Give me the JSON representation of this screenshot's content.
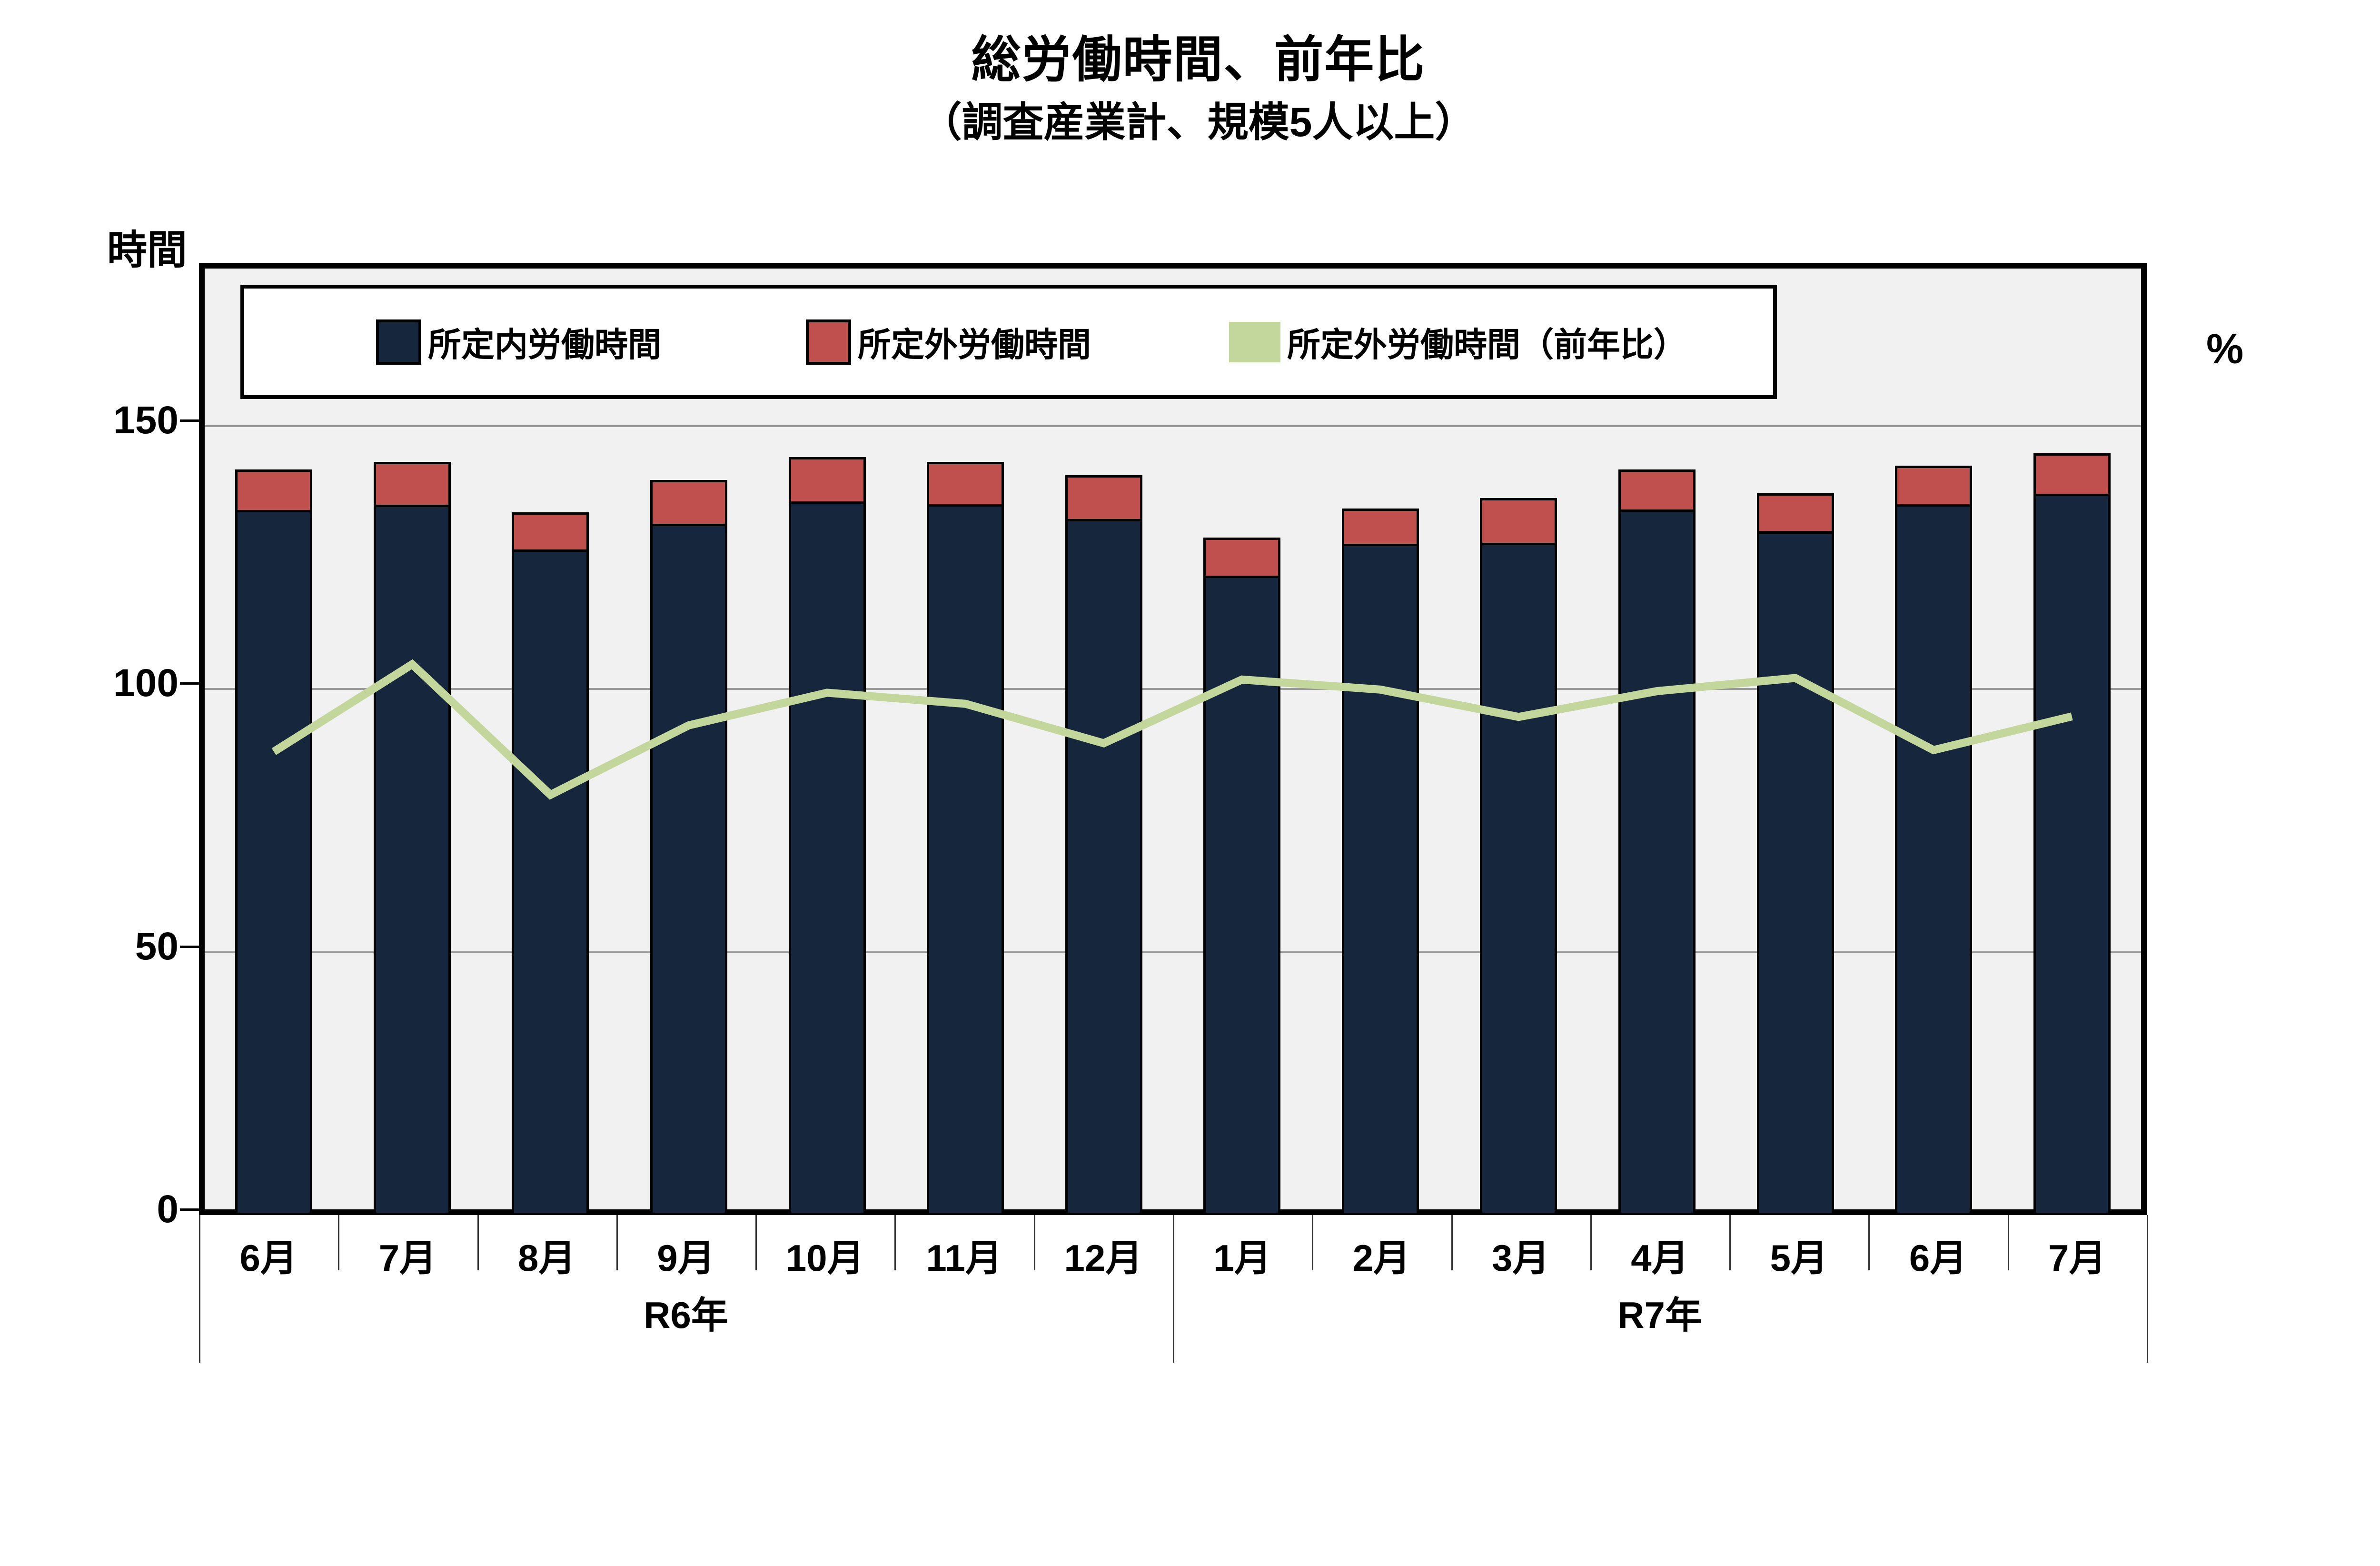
{
  "title": "総労働時間、前年比",
  "subtitle": "（調査産業計、規模5人以上）",
  "left_axis": {
    "unit": "時間",
    "ticks": [
      0,
      50,
      100,
      150
    ]
  },
  "right_axis": {
    "unit": "%"
  },
  "legend": {
    "items": [
      {
        "label": "所定内労働時間",
        "swatch": "bar-swatch-navy"
      },
      {
        "label": "所定外労働時間",
        "swatch": "bar-swatch-red"
      },
      {
        "label": "所定外労働時間（前年比）",
        "swatch": "line-swatch-green"
      }
    ]
  },
  "colors": {
    "scheduled_bar": "#16263C",
    "overtime_bar": "#C0504D",
    "yoy_line": "#C3D69B",
    "plot_background": "#F1F1F1",
    "gridline": "#9B9B9B"
  },
  "chart_data": {
    "type": "bar",
    "subtype": "stacked-bar-with-line-combo",
    "title": "総労働時間、前年比",
    "subtitle": "（調査産業計、規模5人以上）",
    "categories": [
      "6月",
      "7月",
      "8月",
      "9月",
      "10月",
      "11月",
      "12月",
      "1月",
      "2月",
      "3月",
      "4月",
      "5月",
      "6月",
      "7月"
    ],
    "year_groups": [
      {
        "label": "R6年",
        "span": 7
      },
      {
        "label": "R7年",
        "span": 7
      }
    ],
    "series": [
      {
        "name": "所定内労働時間",
        "type": "bar",
        "stack": "hours",
        "color": "#16263C",
        "values": [
          134.0,
          135.0,
          126.5,
          131.4,
          135.7,
          135.1,
          132.3,
          121.5,
          127.6,
          127.8,
          134.1,
          130.0,
          135.1,
          137.1
        ]
      },
      {
        "name": "所定外労働時間",
        "type": "bar",
        "stack": "hours",
        "color": "#C0504D",
        "values": [
          7.7,
          8.2,
          7.1,
          8.3,
          8.4,
          8.1,
          8.3,
          7.3,
          6.7,
          8.5,
          7.6,
          7.2,
          7.3,
          7.7
        ]
      },
      {
        "name": "所定外労働時間（前年比）",
        "type": "line",
        "axis": "right",
        "color": "#C3D69B",
        "values": [
          87.0,
          103.6,
          78.8,
          92.0,
          98.2,
          96.1,
          88.6,
          100.7,
          98.8,
          93.6,
          98.5,
          101.0,
          87.3,
          93.7
        ]
      }
    ],
    "xlabel": "",
    "ylabel_left": "時間",
    "ylabel_right": "%",
    "left_ticks": [
      0,
      50,
      100,
      150
    ],
    "ylim_left": [
      0,
      180
    ],
    "grid": true,
    "legend_position": "top"
  }
}
